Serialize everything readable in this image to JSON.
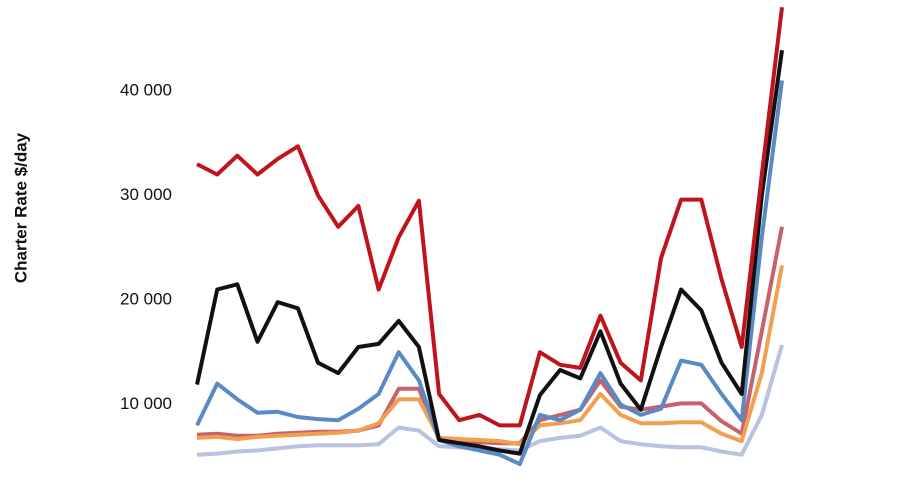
{
  "chart_data": {
    "type": "line",
    "y_label": "Charter Rate $/day",
    "ylim": [
      0,
      48700
    ],
    "yticks": [
      {
        "value": 10000,
        "label": "10 000"
      },
      {
        "value": 20000,
        "label": "20 000"
      },
      {
        "value": 30000,
        "label": "30 000"
      },
      {
        "value": 40000,
        "label": "40 000"
      }
    ],
    "grid": false,
    "series": [
      {
        "color": "#e8eaf4",
        "values": [
          5200,
          5300,
          5500,
          5600,
          5800,
          6000,
          6100,
          6100,
          6100,
          6200,
          7800,
          7500,
          6000,
          5900,
          5800,
          5700,
          5600,
          6500,
          6800,
          7000,
          7800,
          6500,
          6200,
          6000,
          5900,
          5900,
          5500,
          5200,
          9000,
          15700
        ]
      },
      {
        "color": "#b9c2de",
        "values": [
          5200,
          5300,
          5500,
          5600,
          5800,
          6000,
          6100,
          6100,
          6100,
          6200,
          7800,
          7500,
          6000,
          5900,
          5800,
          5700,
          5600,
          6500,
          6800,
          7000,
          7800,
          6500,
          6200,
          6000,
          5900,
          5900,
          5500,
          5200,
          9000,
          15700
        ]
      },
      {
        "color": "#c5626b",
        "values": [
          7100,
          7200,
          7000,
          7000,
          7200,
          7300,
          7400,
          7400,
          7500,
          8000,
          11500,
          11500,
          6600,
          6500,
          6400,
          6300,
          6300,
          8500,
          9000,
          9500,
          12300,
          9800,
          9500,
          9800,
          10100,
          10100,
          8400,
          7200,
          17000,
          27000
        ]
      },
      {
        "color": "#f0a050",
        "values": [
          6800,
          6900,
          6700,
          6900,
          7000,
          7100,
          7200,
          7300,
          7500,
          8200,
          10500,
          10500,
          6800,
          6700,
          6600,
          6500,
          6200,
          8000,
          8200,
          8500,
          11000,
          9000,
          8200,
          8200,
          8300,
          8300,
          7200,
          6500,
          13000,
          23300
        ]
      },
      {
        "color": "#5a8ac6",
        "values": [
          8000,
          12000,
          10500,
          9200,
          9300,
          8800,
          8600,
          8500,
          9600,
          11000,
          15000,
          12300,
          6600,
          6000,
          5600,
          5200,
          4300,
          9000,
          8500,
          9500,
          13000,
          10000,
          9000,
          9600,
          14200,
          13800,
          11000,
          8500,
          26000,
          41000
        ]
      },
      {
        "color": "#111111",
        "values": [
          11900,
          21000,
          21500,
          16000,
          19800,
          19200,
          14000,
          13000,
          15500,
          15800,
          18000,
          15500,
          6600,
          6300,
          6000,
          5600,
          5300,
          10900,
          13300,
          12500,
          17000,
          12000,
          9500,
          15500,
          21000,
          19000,
          14000,
          11000,
          30000,
          43900
        ]
      },
      {
        "color": "#c0141c",
        "values": [
          33000,
          32000,
          33800,
          32000,
          33500,
          34700,
          30000,
          27000,
          29000,
          21000,
          26000,
          29500,
          11000,
          8500,
          9000,
          8000,
          8000,
          15000,
          13800,
          13500,
          18500,
          14000,
          12300,
          24000,
          29600,
          29600,
          22000,
          15500,
          32000,
          48000
        ]
      }
    ]
  }
}
